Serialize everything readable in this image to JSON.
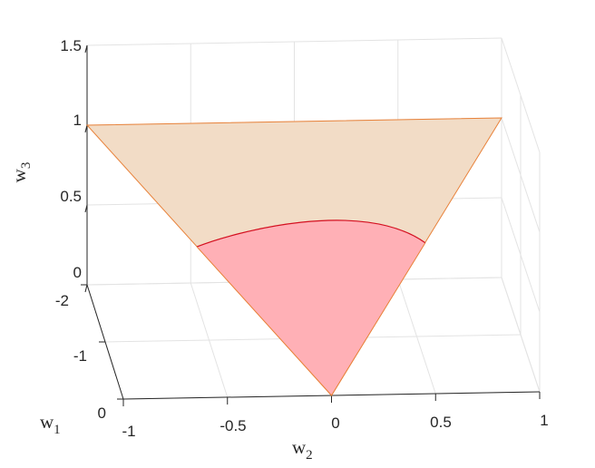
{
  "chart_data": {
    "type": "3d-surface",
    "title": "",
    "xlabel": {
      "base": "w",
      "sub": "1"
    },
    "ylabel": {
      "base": "w",
      "sub": "2"
    },
    "zlabel": {
      "base": "w",
      "sub": "3"
    },
    "w1_ticks": [
      "-2",
      "-1",
      "0"
    ],
    "w2_ticks": [
      "-1",
      "-0.5",
      "0",
      "0.5",
      "1"
    ],
    "w3_ticks": [
      "0",
      "0.5",
      "1",
      "1.5"
    ],
    "w1_lim": [
      -2,
      0
    ],
    "w2_lim": [
      -1,
      1
    ],
    "w3_lim": [
      0,
      1.5
    ],
    "grid": true,
    "triangle": {
      "vertices_w1_w2_w3": [
        [
          0,
          0,
          0
        ],
        [
          -2,
          -1,
          1
        ],
        [
          -2,
          1,
          1
        ]
      ],
      "color": "#f2dcc6",
      "edge_color": "#e8823a"
    },
    "region": {
      "description_vertices_w1_w2_w3": [
        [
          0,
          0,
          0
        ],
        [
          -1.1,
          -0.55,
          0.55
        ],
        [
          -1.3,
          -0.1,
          0.62
        ],
        [
          -1.2,
          0.35,
          0.6
        ],
        [
          -1.1,
          0.55,
          0.55
        ]
      ],
      "color": "#ffb0b6",
      "edge_color": "#d41020"
    }
  }
}
